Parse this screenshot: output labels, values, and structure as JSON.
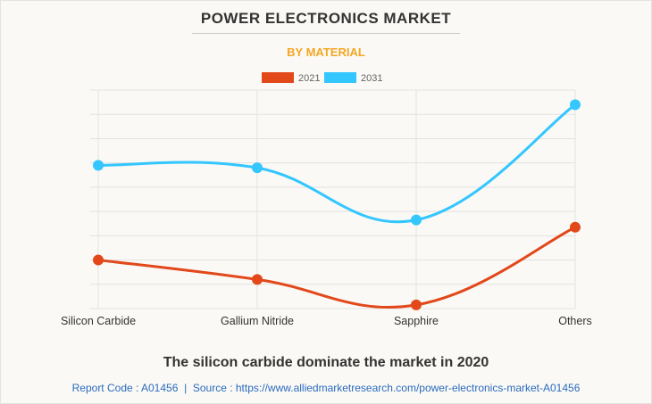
{
  "header": {
    "title": "POWER ELECTRONICS MARKET",
    "subtitle": "BY MATERIAL"
  },
  "caption": "The silicon carbide dominate the market in 2020",
  "footer": {
    "report_code": "Report Code : A01456",
    "separator": "|",
    "source": "Source : https://www.alliedmarketresearch.com/power-electronics-market-A01456"
  },
  "chart_data": {
    "type": "line",
    "title": "POWER ELECTRONICS MARKET",
    "subtitle": "BY MATERIAL",
    "categories": [
      "Silicon Carbide",
      "Gallium Nitride",
      "Sapphire",
      "Others"
    ],
    "ylim": [
      0,
      9
    ],
    "y_tick_labels_shown": false,
    "grid": true,
    "legend_placement": "top",
    "smooth": true,
    "series": [
      {
        "name": "2021",
        "color": "#e2481a",
        "values": [
          2.0,
          1.2,
          0.15,
          3.35
        ]
      },
      {
        "name": "2031",
        "color": "#33c6ff",
        "values": [
          5.9,
          5.8,
          3.65,
          8.4
        ]
      }
    ]
  }
}
